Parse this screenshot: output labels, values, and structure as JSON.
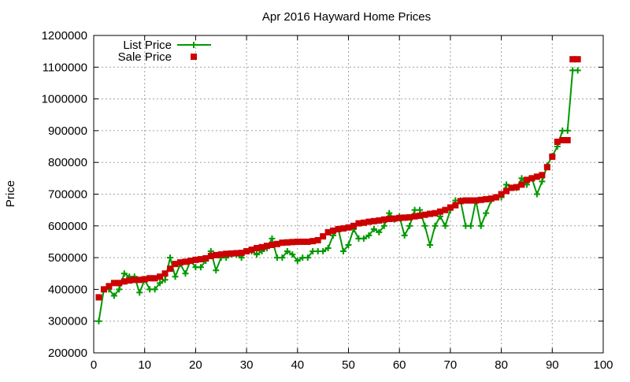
{
  "chart_data": {
    "type": "line",
    "title": "Apr 2016 Hayward Home Prices",
    "xlabel": "",
    "ylabel": "Price",
    "xlim": [
      0,
      100
    ],
    "ylim": [
      200000,
      1200000
    ],
    "xticks": [
      0,
      10,
      20,
      30,
      40,
      50,
      60,
      70,
      80,
      90,
      100
    ],
    "yticks": [
      200000,
      300000,
      400000,
      500000,
      600000,
      700000,
      800000,
      900000,
      1000000,
      1100000,
      1200000
    ],
    "grid": true,
    "legend_position": "top-left",
    "series": [
      {
        "name": "List Price",
        "color": "#009900",
        "marker": "plus",
        "line": true,
        "x": [
          1,
          2,
          3,
          4,
          5,
          6,
          7,
          8,
          9,
          10,
          11,
          12,
          13,
          14,
          15,
          16,
          17,
          18,
          19,
          20,
          21,
          22,
          23,
          24,
          25,
          26,
          27,
          28,
          29,
          30,
          31,
          32,
          33,
          34,
          35,
          36,
          37,
          38,
          39,
          40,
          41,
          42,
          43,
          44,
          45,
          46,
          47,
          48,
          49,
          50,
          51,
          52,
          53,
          54,
          55,
          56,
          57,
          58,
          59,
          60,
          61,
          62,
          63,
          64,
          65,
          66,
          67,
          68,
          69,
          70,
          71,
          72,
          73,
          74,
          75,
          76,
          77,
          78,
          79,
          80,
          81,
          82,
          83,
          84,
          85,
          86,
          87,
          88,
          89,
          90,
          91,
          92,
          93,
          94,
          95
        ],
        "values": [
          300000,
          400000,
          400000,
          380000,
          400000,
          450000,
          440000,
          440000,
          390000,
          430000,
          400000,
          400000,
          420000,
          430000,
          500000,
          440000,
          480000,
          450000,
          490000,
          470000,
          470000,
          490000,
          520000,
          460000,
          500000,
          500000,
          510000,
          510000,
          500000,
          520000,
          520000,
          510000,
          520000,
          530000,
          560000,
          500000,
          500000,
          520000,
          510000,
          490000,
          500000,
          500000,
          520000,
          520000,
          520000,
          530000,
          570000,
          590000,
          520000,
          540000,
          590000,
          560000,
          560000,
          570000,
          590000,
          580000,
          600000,
          640000,
          620000,
          630000,
          570000,
          600000,
          650000,
          650000,
          600000,
          540000,
          600000,
          630000,
          600000,
          650000,
          680000,
          680000,
          600000,
          600000,
          680000,
          600000,
          640000,
          680000,
          690000,
          690000,
          730000,
          720000,
          720000,
          750000,
          730000,
          750000,
          700000,
          740000,
          790000,
          820000,
          850000,
          900000,
          900000,
          1090000,
          1090000
        ]
      },
      {
        "name": "Sale Price",
        "color": "#cc0000",
        "marker": "square",
        "line": false,
        "x": [
          1,
          2,
          3,
          4,
          5,
          6,
          7,
          8,
          9,
          10,
          11,
          12,
          13,
          14,
          15,
          16,
          17,
          18,
          19,
          20,
          21,
          22,
          23,
          24,
          25,
          26,
          27,
          28,
          29,
          30,
          31,
          32,
          33,
          34,
          35,
          36,
          37,
          38,
          39,
          40,
          41,
          42,
          43,
          44,
          45,
          46,
          47,
          48,
          49,
          50,
          51,
          52,
          53,
          54,
          55,
          56,
          57,
          58,
          59,
          60,
          61,
          62,
          63,
          64,
          65,
          66,
          67,
          68,
          69,
          70,
          71,
          72,
          73,
          74,
          75,
          76,
          77,
          78,
          79,
          80,
          81,
          82,
          83,
          84,
          85,
          86,
          87,
          88,
          89,
          90,
          91,
          92,
          93,
          94,
          95
        ],
        "values": [
          375000,
          400000,
          410000,
          420000,
          420000,
          425000,
          428000,
          430000,
          430000,
          432000,
          435000,
          435000,
          440000,
          450000,
          465000,
          480000,
          485000,
          487000,
          490000,
          493000,
          495000,
          498000,
          505000,
          508000,
          510000,
          512000,
          513000,
          514000,
          515000,
          520000,
          525000,
          530000,
          533000,
          537000,
          540000,
          543000,
          547000,
          548000,
          549000,
          550000,
          550000,
          550000,
          552000,
          555000,
          567000,
          580000,
          585000,
          590000,
          592000,
          595000,
          600000,
          608000,
          610000,
          613000,
          615000,
          617000,
          620000,
          622000,
          623000,
          625000,
          626000,
          627000,
          630000,
          632000,
          635000,
          638000,
          640000,
          645000,
          650000,
          658000,
          665000,
          678000,
          680000,
          680000,
          680000,
          682000,
          684000,
          686000,
          690000,
          700000,
          710000,
          720000,
          722000,
          730000,
          745000,
          750000,
          755000,
          760000,
          785000,
          818000,
          865000,
          870000,
          870000,
          1125000,
          1125000
        ]
      }
    ]
  }
}
